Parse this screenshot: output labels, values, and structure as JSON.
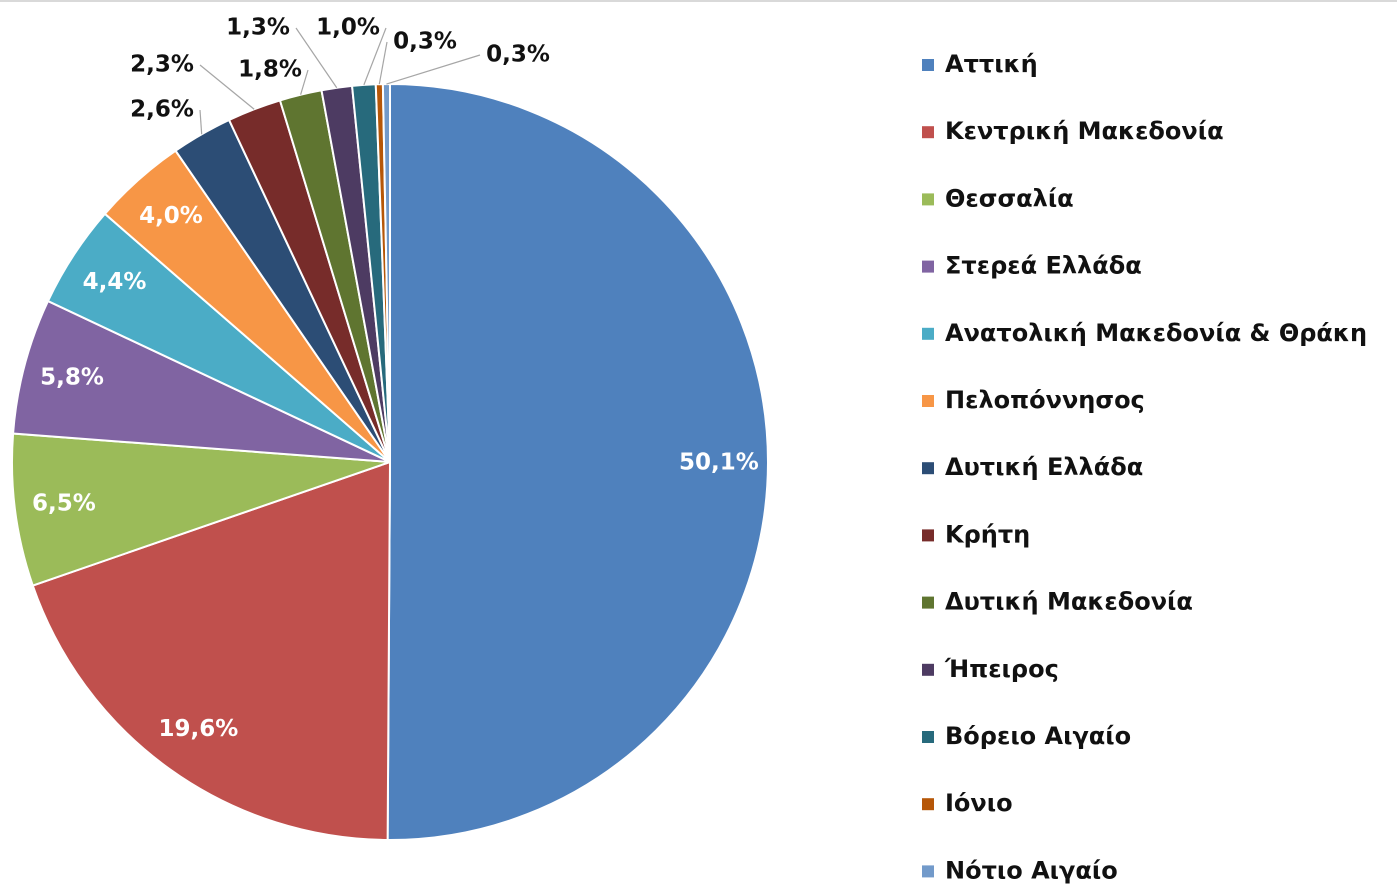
{
  "chart_data": {
    "type": "pie",
    "categories": [
      "Αττική",
      "Κεντρική Μακεδονία",
      "Θεσσαλία",
      "Στερεά Ελλάδα",
      "Ανατολική Μακεδονία & Θράκη",
      "Πελοπόννησος",
      "Δυτική Ελλάδα",
      "Κρήτη",
      "Δυτική Μακεδονία",
      "Ήπειρος",
      "Βόρειο Αιγαίο",
      "Ιόνιο",
      "Νότιο Αιγαίο"
    ],
    "values": [
      50.1,
      19.6,
      6.5,
      5.8,
      4.4,
      4.0,
      2.6,
      2.3,
      1.8,
      1.3,
      1.0,
      0.3,
      0.3
    ],
    "value_labels": [
      "50,1%",
      "19,6%",
      "6,5%",
      "5,8%",
      "4,4%",
      "4,0%",
      "2,6%",
      "2,3%",
      "1,8%",
      "1,3%",
      "1,0%",
      "0,3%",
      "0,3%"
    ],
    "colors": [
      "#4f81bd",
      "#c0504d",
      "#9bbb59",
      "#8064a2",
      "#4bacc6",
      "#f79646",
      "#2c4d75",
      "#772c2a",
      "#5f7530",
      "#4d3b62",
      "#276a7c",
      "#b65708",
      "#729aca"
    ],
    "legend": "right"
  }
}
